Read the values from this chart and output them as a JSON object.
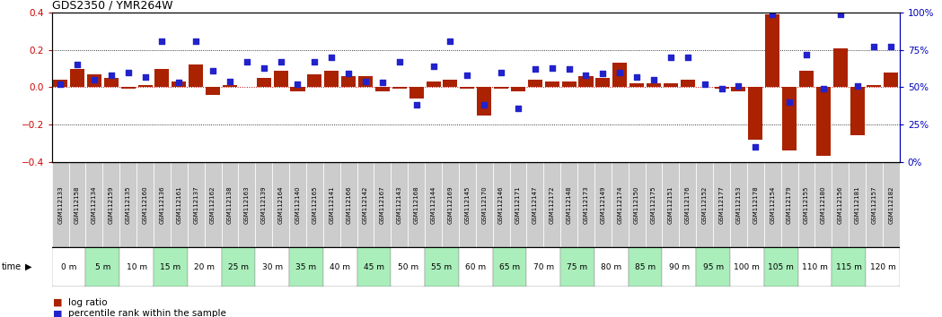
{
  "title": "GDS2350 / YMR264W",
  "samples": [
    "GSM112133",
    "GSM112158",
    "GSM112134",
    "GSM112159",
    "GSM112135",
    "GSM112160",
    "GSM112136",
    "GSM112161",
    "GSM112137",
    "GSM112162",
    "GSM112138",
    "GSM112163",
    "GSM112139",
    "GSM112164",
    "GSM112140",
    "GSM112165",
    "GSM112141",
    "GSM112166",
    "GSM112142",
    "GSM112167",
    "GSM112143",
    "GSM112168",
    "GSM112144",
    "GSM112169",
    "GSM112145",
    "GSM112170",
    "GSM112146",
    "GSM112171",
    "GSM112147",
    "GSM112172",
    "GSM112148",
    "GSM112173",
    "GSM112149",
    "GSM112174",
    "GSM112150",
    "GSM112175",
    "GSM112151",
    "GSM112176",
    "GSM112152",
    "GSM112177",
    "GSM112153",
    "GSM112178",
    "GSM112154",
    "GSM112179",
    "GSM112155",
    "GSM112180",
    "GSM112156",
    "GSM112181",
    "GSM112157",
    "GSM112182"
  ],
  "time_labels": [
    "0 m",
    "5 m",
    "10 m",
    "15 m",
    "20 m",
    "25 m",
    "30 m",
    "35 m",
    "40 m",
    "45 m",
    "50 m",
    "55 m",
    "60 m",
    "65 m",
    "70 m",
    "75 m",
    "80 m",
    "85 m",
    "90 m",
    "95 m",
    "100 m",
    "105 m",
    "110 m",
    "115 m",
    "120 m"
  ],
  "log_ratio": [
    0.04,
    0.1,
    0.07,
    0.05,
    -0.01,
    0.01,
    0.1,
    0.03,
    0.12,
    -0.04,
    0.01,
    0.0,
    0.05,
    0.09,
    -0.02,
    0.07,
    0.09,
    0.06,
    0.06,
    -0.02,
    -0.01,
    -0.06,
    0.03,
    0.04,
    -0.01,
    -0.15,
    -0.01,
    -0.02,
    0.04,
    0.03,
    0.03,
    0.06,
    0.05,
    0.13,
    0.02,
    0.02,
    0.02,
    0.04,
    0.0,
    -0.01,
    -0.02,
    -0.28,
    0.39,
    -0.34,
    0.09,
    -0.37,
    0.21,
    -0.26,
    0.01,
    0.08
  ],
  "percentile_pct": [
    52,
    65,
    55,
    58,
    60,
    57,
    81,
    53,
    81,
    61,
    54,
    67,
    63,
    67,
    52,
    67,
    70,
    59,
    54,
    53,
    67,
    38,
    64,
    81,
    58,
    38,
    60,
    36,
    62,
    63,
    62,
    58,
    59,
    60,
    57,
    55,
    70,
    70,
    52,
    49,
    51,
    10,
    99,
    40,
    72,
    49,
    99,
    51,
    77,
    77
  ],
  "bar_color": "#AA2200",
  "dot_color": "#2222CC",
  "plot_bg_color": "#ffffff",
  "axis_color_left": "#CC0000",
  "axis_color_right": "#0000BB",
  "zero_line_color": "#CC0000",
  "sample_box_color": "#CCCCCC",
  "time_bg_even": "#ffffff",
  "time_bg_odd": "#AAEEBB",
  "legend_log_ratio": "log ratio",
  "legend_percentile": "percentile rank within the sample"
}
